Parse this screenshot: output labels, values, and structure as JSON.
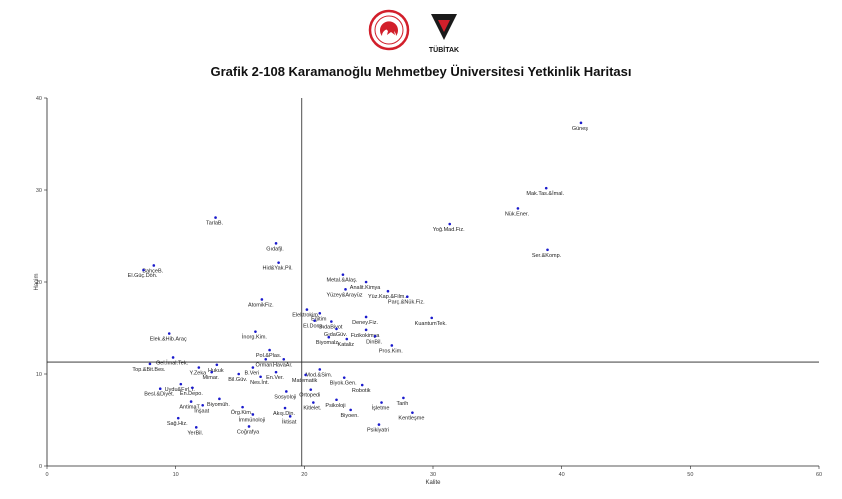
{
  "header": {
    "title": "Grafik 2-108 Karamanoğlu Mehmetbey Üniversitesi Yetkinlik Haritası",
    "logo_right_text": "TÜBİTAK"
  },
  "chart_data": {
    "type": "scatter",
    "xlabel": "Kalite",
    "ylabel": "Hacim",
    "xlim": [
      0,
      60
    ],
    "ylim": [
      0,
      40
    ],
    "xticks": [
      "0",
      "10",
      "20",
      "30",
      "40",
      "50",
      "60"
    ],
    "yticks": [
      "0",
      "10",
      "20",
      "30",
      "40"
    ],
    "ref_x": 19.8,
    "ref_y": 11.3,
    "point_color": "#1a1acc",
    "grid": false,
    "points": [
      {
        "label": "Güneş",
        "x": 41.5,
        "y": 37.3
      },
      {
        "label": "Mak.Tas.&İmal.",
        "x": 38.8,
        "y": 30.2
      },
      {
        "label": "Nük.Ener.",
        "x": 36.6,
        "y": 28.0
      },
      {
        "label": "Yoğ.Mad.Fiz.",
        "x": 31.3,
        "y": 26.3
      },
      {
        "label": "Ser.&Komp.",
        "x": 38.9,
        "y": 23.5
      },
      {
        "label": "TarlaB.",
        "x": 13.1,
        "y": 27.0
      },
      {
        "label": "Gıdafjl.",
        "x": 17.8,
        "y": 24.2
      },
      {
        "label": "Hid&Yak.Pil.",
        "x": 18.0,
        "y": 22.1
      },
      {
        "label": "BahçeB.",
        "x": 8.3,
        "y": 21.8
      },
      {
        "label": "El.Güç.Dön.",
        "x": 7.5,
        "y": 21.3
      },
      {
        "label": "Metal.&Alaş.",
        "x": 23.0,
        "y": 20.8
      },
      {
        "label": "Analit.Kimya",
        "x": 24.8,
        "y": 20.0
      },
      {
        "label": "Yüzey&Arayüz",
        "x": 23.2,
        "y": 19.2
      },
      {
        "label": "Yüz.Kap.&Film.",
        "x": 26.5,
        "y": 19.0
      },
      {
        "label": "Parç.&Nük.Fiz.",
        "x": 28.0,
        "y": 18.4
      },
      {
        "label": "AtomikFiz.",
        "x": 16.7,
        "y": 18.1
      },
      {
        "label": "Elektrokim.",
        "x": 20.2,
        "y": 17.0
      },
      {
        "label": "Eğitim",
        "x": 21.2,
        "y": 16.6
      },
      {
        "label": "Deney.Fiz.",
        "x": 24.8,
        "y": 16.2
      },
      {
        "label": "KuantumTek.",
        "x": 29.9,
        "y": 16.1
      },
      {
        "label": "El.Dona.",
        "x": 20.8,
        "y": 15.8
      },
      {
        "label": "GıdaBiyot",
        "x": 22.1,
        "y": 15.7
      },
      {
        "label": "GıdaGüv.",
        "x": 22.5,
        "y": 14.9
      },
      {
        "label": "Fizikokimya",
        "x": 24.8,
        "y": 14.8
      },
      {
        "label": "Elek.&Hib.Araç",
        "x": 9.5,
        "y": 14.4
      },
      {
        "label": "İnorg.Kim.",
        "x": 16.2,
        "y": 14.6
      },
      {
        "label": "Biyomalz.",
        "x": 21.9,
        "y": 14.0
      },
      {
        "label": "DinBil.",
        "x": 25.5,
        "y": 14.1
      },
      {
        "label": "Kataliz",
        "x": 23.3,
        "y": 13.8
      },
      {
        "label": "Pros.Kim.",
        "x": 26.8,
        "y": 13.1
      },
      {
        "label": "Pol.&Plas.",
        "x": 17.3,
        "y": 12.6
      },
      {
        "label": "Gel.İmal.Tek.",
        "x": 9.8,
        "y": 11.8
      },
      {
        "label": "Orman.",
        "x": 17.0,
        "y": 11.6
      },
      {
        "label": "HavaAr.",
        "x": 18.4,
        "y": 11.6
      },
      {
        "label": "Top.&Bit.Bes.",
        "x": 8.0,
        "y": 11.1
      },
      {
        "label": "Y.Zeka",
        "x": 11.8,
        "y": 10.7
      },
      {
        "label": "Hukuk",
        "x": 13.2,
        "y": 11.0
      },
      {
        "label": "B.Veri",
        "x": 16.0,
        "y": 10.7
      },
      {
        "label": "Mod.&Sim.",
        "x": 21.2,
        "y": 10.5
      },
      {
        "label": "En.Ver.",
        "x": 17.8,
        "y": 10.2
      },
      {
        "label": "Mimar.",
        "x": 12.8,
        "y": 10.2
      },
      {
        "label": "Bil.Güv.",
        "x": 14.9,
        "y": 10.0
      },
      {
        "label": "Matematik",
        "x": 20.1,
        "y": 9.9
      },
      {
        "label": "Biyok.Gen.",
        "x": 23.1,
        "y": 9.6
      },
      {
        "label": "Nes.İnt.",
        "x": 16.6,
        "y": 9.7
      },
      {
        "label": "Uydu&Fırl.T.",
        "x": 10.4,
        "y": 8.9
      },
      {
        "label": "Robotik",
        "x": 24.5,
        "y": 8.8
      },
      {
        "label": "Ortopedi",
        "x": 20.5,
        "y": 8.3
      },
      {
        "label": "En.Depo.",
        "x": 11.3,
        "y": 8.5
      },
      {
        "label": "Besl.&Diyet.",
        "x": 8.8,
        "y": 8.4
      },
      {
        "label": "Sosyoloji",
        "x": 18.6,
        "y": 8.1
      },
      {
        "label": "Biyomüh.",
        "x": 13.4,
        "y": 7.3
      },
      {
        "label": "Tarih",
        "x": 27.7,
        "y": 7.4
      },
      {
        "label": "Psikoloji",
        "x": 22.5,
        "y": 7.2
      },
      {
        "label": "AntimaT.",
        "x": 11.2,
        "y": 7.0
      },
      {
        "label": "İşletme",
        "x": 26.0,
        "y": 6.9
      },
      {
        "label": "Kitlelet.",
        "x": 20.7,
        "y": 6.9
      },
      {
        "label": "İnşaat",
        "x": 12.1,
        "y": 6.6
      },
      {
        "label": "Örg.Kim.",
        "x": 15.2,
        "y": 6.4
      },
      {
        "label": "Akış.Din.",
        "x": 18.5,
        "y": 6.3
      },
      {
        "label": "Biyoen.",
        "x": 23.6,
        "y": 6.1
      },
      {
        "label": "Kentleşme",
        "x": 28.4,
        "y": 5.8
      },
      {
        "label": "İmmünoloji",
        "x": 16.0,
        "y": 5.6
      },
      {
        "label": "İktisat",
        "x": 18.9,
        "y": 5.4
      },
      {
        "label": "Sağ.Hiz.",
        "x": 10.2,
        "y": 5.2
      },
      {
        "label": "YerBil.",
        "x": 11.6,
        "y": 4.2
      },
      {
        "label": "Coğrafya",
        "x": 15.7,
        "y": 4.3
      },
      {
        "label": "Psikiyatri",
        "x": 25.8,
        "y": 4.5
      }
    ]
  }
}
